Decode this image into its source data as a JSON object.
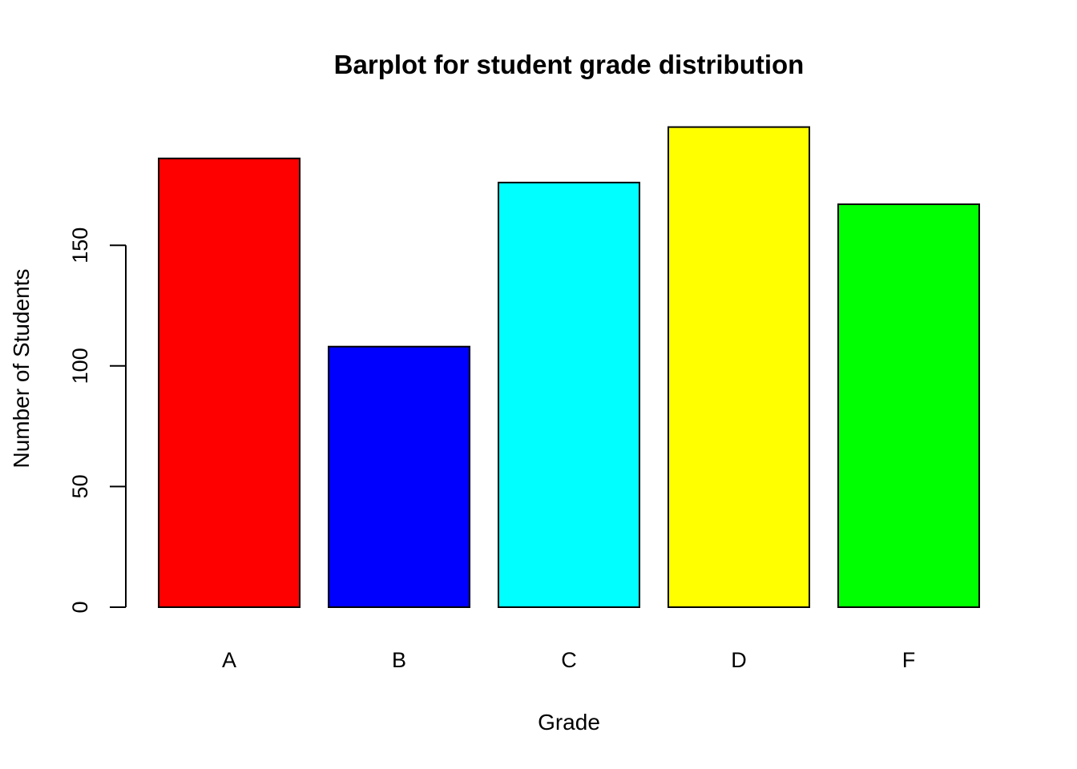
{
  "chart_data": {
    "type": "bar",
    "title": "Barplot for student grade distribution",
    "xlabel": "Grade",
    "ylabel": "Number of Students",
    "categories": [
      "A",
      "B",
      "C",
      "D",
      "F"
    ],
    "values": [
      186,
      108,
      176,
      199,
      167
    ],
    "colors": [
      "#ff0000",
      "#0000ff",
      "#00ffff",
      "#ffff00",
      "#00ff00"
    ],
    "y_ticks": [
      0,
      50,
      100,
      150
    ],
    "ylim": [
      0,
      199
    ],
    "grid": false,
    "legend": "none"
  }
}
